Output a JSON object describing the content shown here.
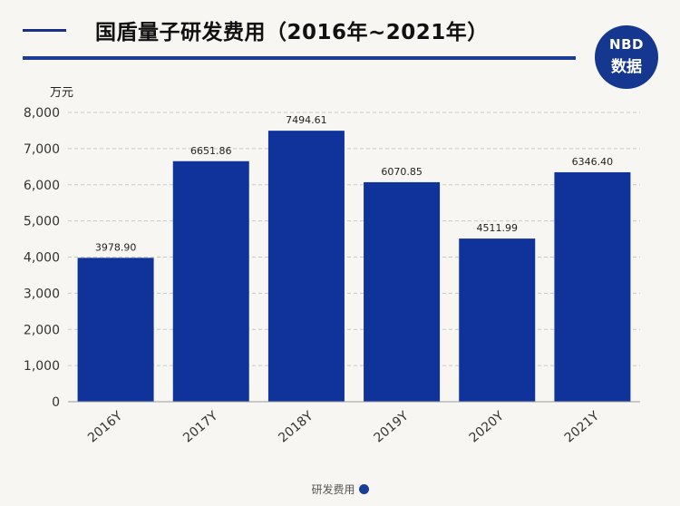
{
  "header": {
    "title": "国盾量子研发费用（2016年~2021年）"
  },
  "logo": {
    "top": "NBD",
    "bottom": "数据"
  },
  "chart_data": {
    "type": "bar",
    "title": "国盾量子研发费用（2016年~2021年）",
    "unit_label": "万元",
    "categories": [
      "2016Y",
      "2017Y",
      "2018Y",
      "2019Y",
      "2020Y",
      "2021Y"
    ],
    "series": [
      {
        "name": "研发费用",
        "values": [
          3978.9,
          6651.86,
          7494.61,
          6070.85,
          4511.99,
          6346.4
        ]
      }
    ],
    "value_labels": [
      "3978.90",
      "6651.86",
      "7494.61",
      "6070.85",
      "4511.99",
      "6346.40"
    ],
    "y_ticks": [
      "0",
      "1,000",
      "2,000",
      "3,000",
      "4,000",
      "5,000",
      "6,000",
      "7,000",
      "8,000"
    ],
    "ylim": [
      0,
      8000
    ],
    "grid": true,
    "legend_position": "bottom",
    "bar_color": "#0f339b"
  },
  "legend": {
    "label": "研发费用"
  }
}
